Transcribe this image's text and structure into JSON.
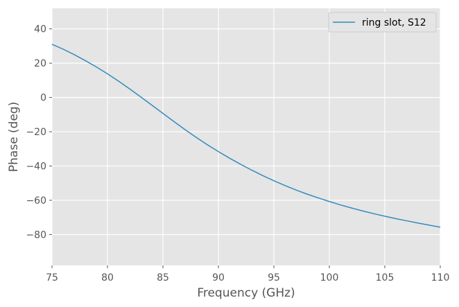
{
  "chart_data": {
    "type": "line",
    "title": "",
    "xlabel": "Frequency (GHz)",
    "ylabel": "Phase (deg)",
    "xlim": [
      75,
      110
    ],
    "ylim": [
      -98,
      52
    ],
    "x_ticks": [
      75,
      80,
      85,
      90,
      95,
      100,
      105,
      110
    ],
    "y_ticks": [
      40,
      20,
      0,
      -20,
      -40,
      -60,
      -80
    ],
    "x_tick_labels": [
      "75",
      "80",
      "85",
      "90",
      "95",
      "100",
      "105",
      "110"
    ],
    "y_tick_labels": [
      "40",
      "20",
      "0",
      "−20",
      "−40",
      "−60",
      "−80"
    ],
    "grid": true,
    "legend_position": "top-right",
    "colors": {
      "background": "#e5e5e5",
      "grid": "#ffffff",
      "series": "#348abd"
    },
    "series": [
      {
        "name": "ring slot, S12",
        "x": [
          75,
          76,
          77,
          78,
          79,
          80,
          81,
          82,
          83,
          84,
          85,
          86,
          87,
          88,
          89,
          90,
          91,
          92,
          93,
          94,
          95,
          96,
          97,
          98,
          99,
          100,
          101,
          102,
          103,
          104,
          105,
          106,
          107,
          108,
          109,
          110
        ],
        "y": [
          31,
          28.2,
          25,
          21.5,
          17.8,
          13.8,
          9.5,
          5,
          0.3,
          -4.5,
          -9.3,
          -14.1,
          -18.8,
          -23.3,
          -27.6,
          -31.6,
          -35.4,
          -39,
          -42.4,
          -45.6,
          -48.6,
          -51.4,
          -54,
          -56.4,
          -58.6,
          -60.7,
          -62.7,
          -64.5,
          -66.2,
          -67.8,
          -69.3,
          -70.7,
          -72,
          -73.3,
          -74.5,
          -75.7
        ]
      }
    ]
  }
}
